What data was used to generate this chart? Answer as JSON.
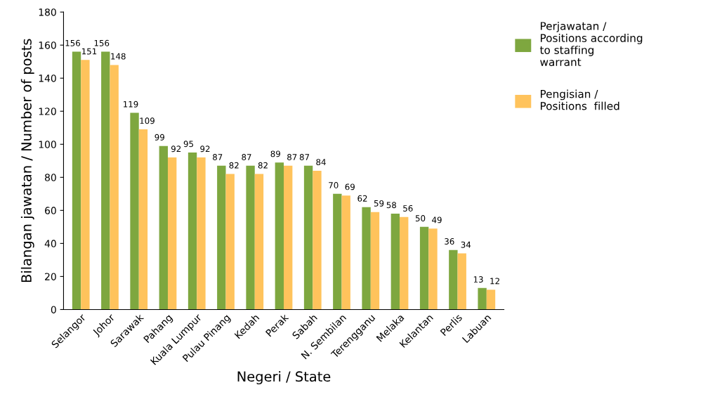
{
  "chart_data": {
    "type": "bar",
    "xlabel": "Negeri / State",
    "ylabel": "Bilangan jawatan / Number of posts",
    "categories": [
      "Selangor",
      "Johor",
      "Sarawak",
      "Pahang",
      "Kuala Lumpur",
      "Pulau Pinang",
      "Kedah",
      "Perak",
      "Sabah",
      "N. Sembilan",
      "Terengganu",
      "Melaka",
      "Kelantan",
      "Perlis",
      "Labuan"
    ],
    "series": [
      {
        "name": "Perjawatan /\nPositions according\nto staffing\nwarrant",
        "color": "#7ea73f",
        "values": [
          156,
          156,
          119,
          99,
          95,
          87,
          87,
          89,
          87,
          70,
          62,
          58,
          50,
          36,
          13
        ]
      },
      {
        "name": "Pengisian /\nPositions  filled",
        "color": "#ffc35c",
        "values": [
          151,
          148,
          109,
          92,
          92,
          82,
          82,
          87,
          84,
          69,
          59,
          56,
          49,
          34,
          12
        ]
      }
    ],
    "ylim": [
      0,
      180
    ],
    "yticks": [
      0,
      20,
      40,
      60,
      80,
      100,
      120,
      140,
      160,
      180
    ],
    "data_labels": true,
    "legend": "top right",
    "grid": false
  }
}
